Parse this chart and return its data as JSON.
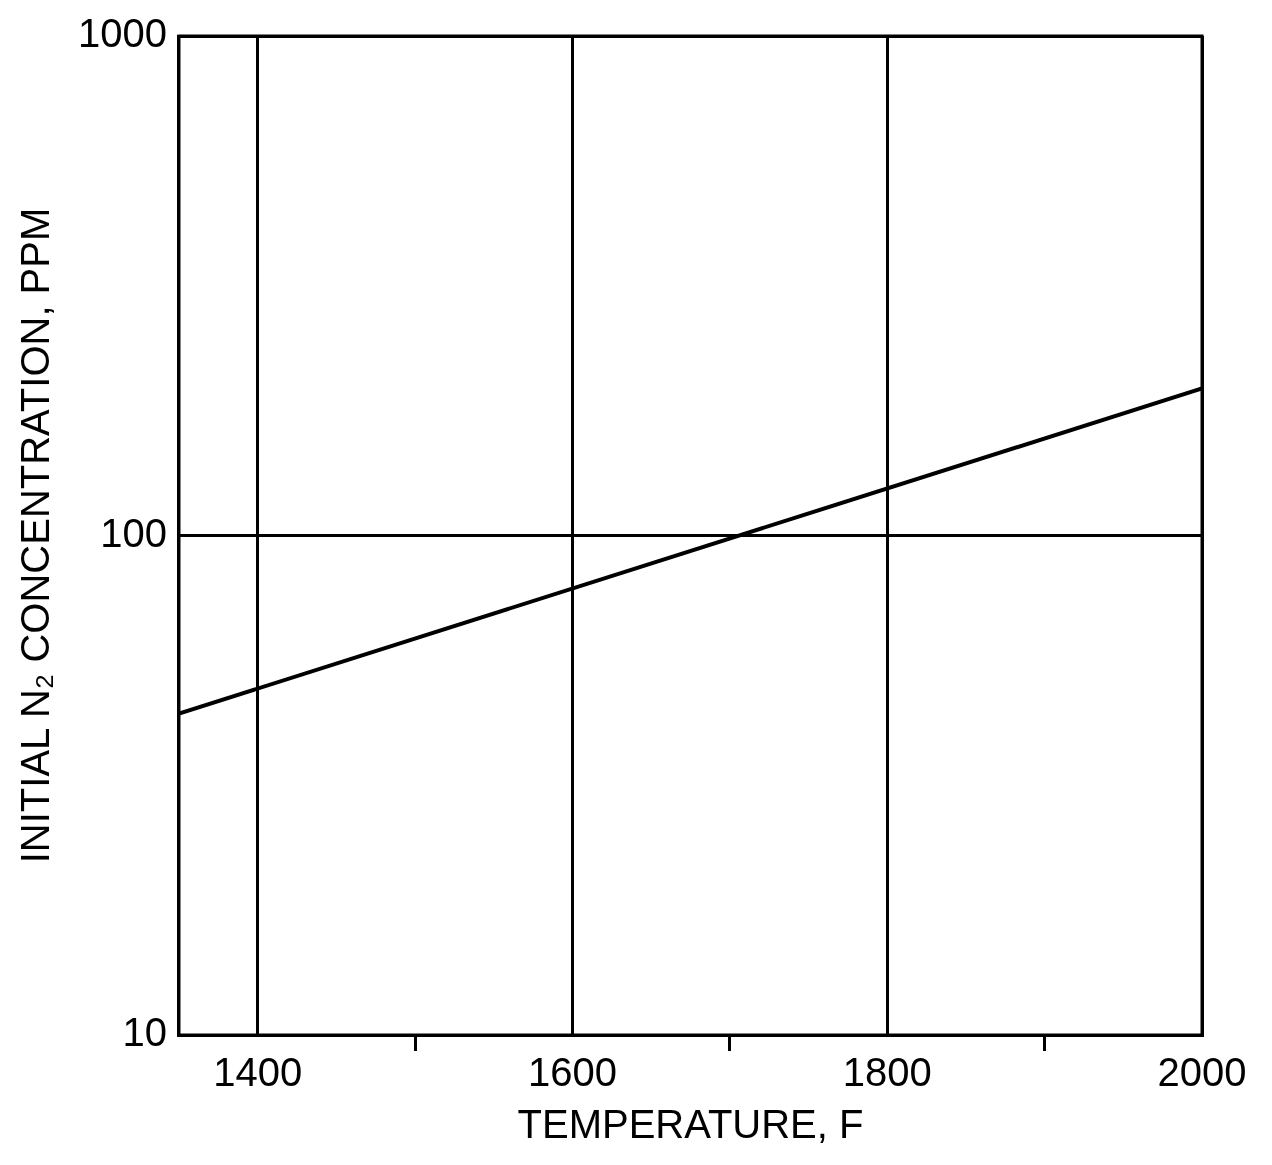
{
  "chart_data": {
    "type": "line",
    "xlabel": "TEMPERATURE, F",
    "ylabel": "INITIAL N₂ CONCENTRATION, PPM",
    "x": [
      1350,
      2000
    ],
    "series": [
      {
        "color": "#000000",
        "values": [
          44,
          197
        ]
      }
    ],
    "xlim": [
      1350,
      2000
    ],
    "xticks": [
      1400,
      {
        "value": 1500,
        "label": null
      },
      1600,
      {
        "value": 1700,
        "label": null
      },
      1800,
      {
        "value": 1900,
        "label": null
      },
      2000
    ],
    "ylim": [
      10,
      1000
    ],
    "yticks": [
      10,
      100,
      1000
    ],
    "log": "y",
    "grid": true,
    "legend": false,
    "marker": "none",
    "line_style": "solid"
  }
}
